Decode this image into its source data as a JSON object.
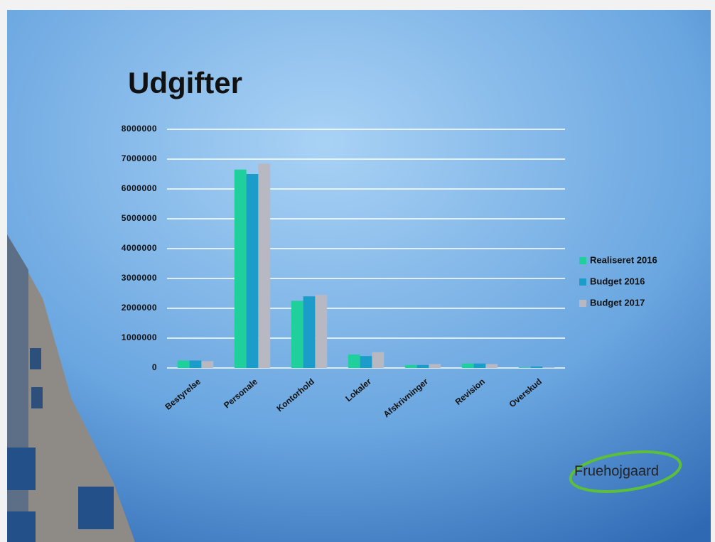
{
  "chart_data": {
    "type": "bar",
    "title": "Udgifter",
    "categories": [
      "Bestyrelse",
      "Personale",
      "Kontorhold",
      "Lokaler",
      "Afskrivninger",
      "Revision",
      "Overskud"
    ],
    "series": [
      {
        "name": "Realiseret 2016",
        "color": "#1fcf9c",
        "values": [
          250000,
          6650000,
          2250000,
          450000,
          100000,
          150000,
          20000
        ]
      },
      {
        "name": "Budget 2016",
        "color": "#1c9cc9",
        "values": [
          250000,
          6500000,
          2400000,
          400000,
          100000,
          150000,
          50000
        ]
      },
      {
        "name": "Budget 2017",
        "color": "#b7b8c2",
        "values": [
          230000,
          6850000,
          2450000,
          530000,
          130000,
          130000,
          20000
        ]
      }
    ],
    "ylim": [
      0,
      8000000
    ],
    "yticks": [
      0,
      1000000,
      2000000,
      3000000,
      4000000,
      5000000,
      6000000,
      7000000,
      8000000
    ],
    "grid": true,
    "legend": "right",
    "logo": "Fruehojgaard"
  }
}
